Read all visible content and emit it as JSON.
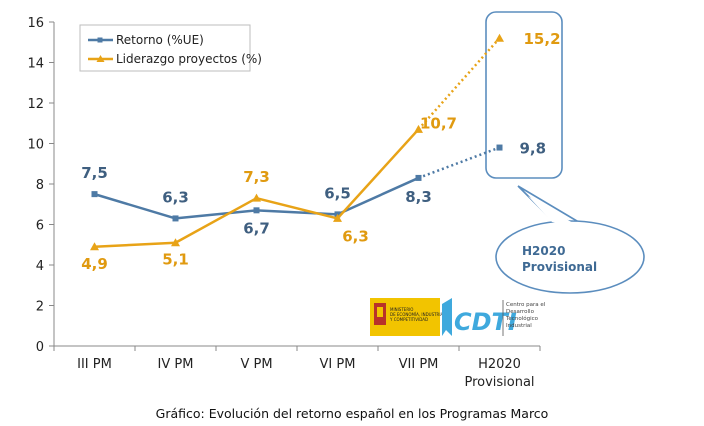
{
  "chart_data": {
    "type": "line",
    "categories": [
      "III PM",
      "IV PM",
      "V PM",
      "VI PM",
      "VII PM",
      "H2020\nProvisional"
    ],
    "ylim": [
      0,
      16
    ],
    "yticks": [
      0,
      2,
      4,
      6,
      8,
      10,
      12,
      14,
      16
    ],
    "grid": false,
    "legend_position": "top-left",
    "series": [
      {
        "name": "Retorno (%UE)",
        "color": "#4E7AA5",
        "label_color": "#3F5F80",
        "marker": "square",
        "values": [
          7.5,
          6.3,
          6.7,
          6.5,
          8.3,
          9.8
        ],
        "labels": [
          "7,5",
          "6,3",
          "6,7",
          "6,5",
          "8,3",
          "9,8"
        ],
        "dotted_last_segment": true
      },
      {
        "name": "Liderazgo proyectos (%)",
        "color": "#E8A317",
        "label_color": "#E09A10",
        "marker": "triangle",
        "values": [
          4.9,
          5.1,
          7.3,
          6.3,
          10.7,
          15.2
        ],
        "labels": [
          "4,9",
          "5,1",
          "7,3",
          "6,3",
          "10,7",
          "15,2"
        ],
        "dotted_last_segment": true
      }
    ],
    "callout": {
      "line1": "H2020",
      "line2": "Provisional",
      "color": "#3F6A94"
    }
  },
  "logos": {
    "ministry": [
      "MINISTERIO",
      "DE ECONOMÍA, INDUSTRIA",
      "Y COMPETITIVIDAD"
    ],
    "cdti_mark": "CDTI",
    "cdti_text": [
      "Centro para el",
      "Desarrollo",
      "Tecnológico",
      "Industrial"
    ]
  },
  "caption": "Gráfico: Evolución del retorno español en los Programas Marco"
}
